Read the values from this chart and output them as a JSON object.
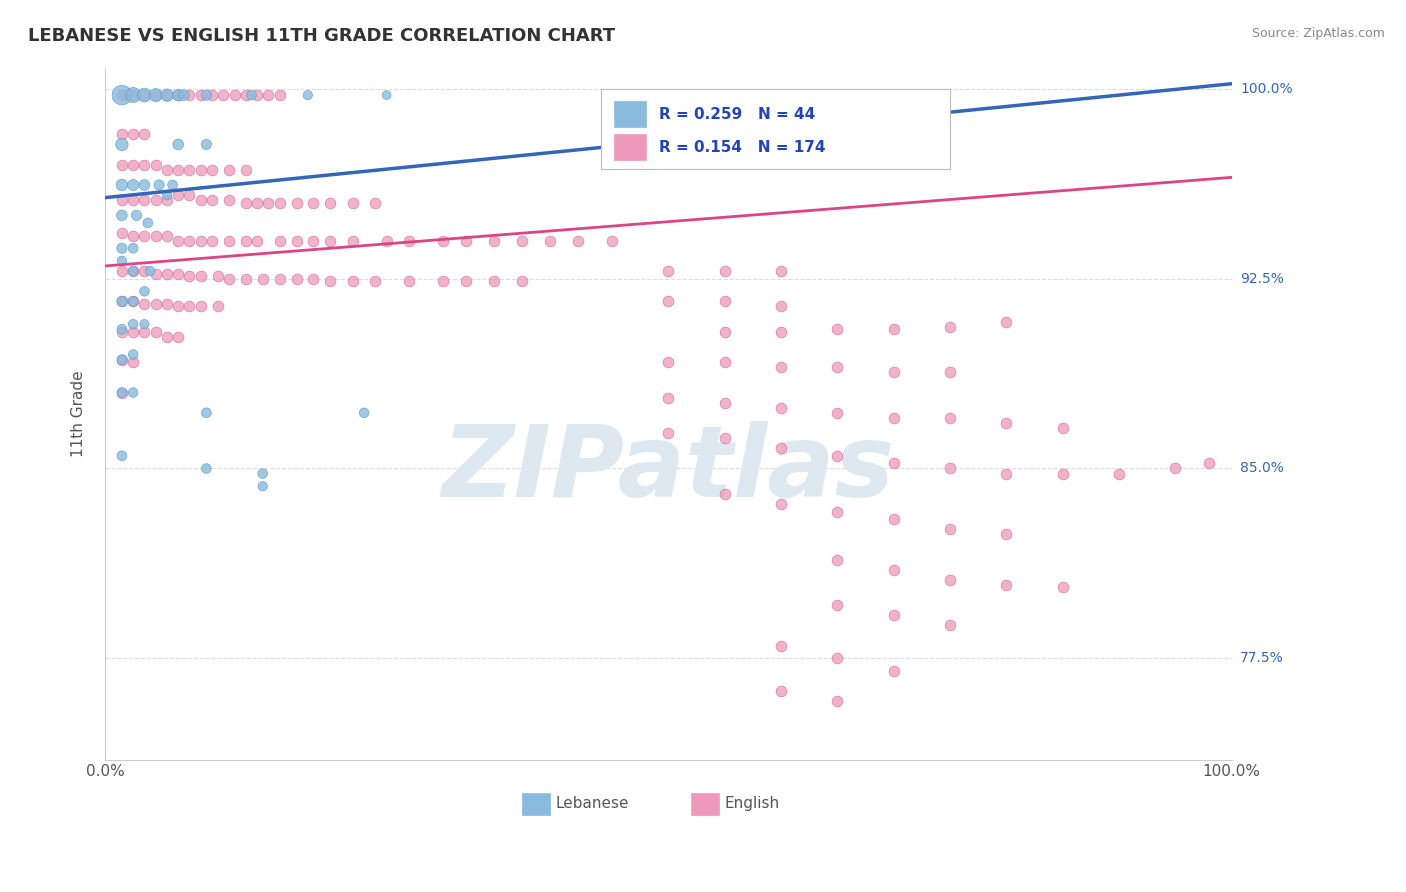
{
  "title": "LEBANESE VS ENGLISH 11TH GRADE CORRELATION CHART",
  "source": "Source: ZipAtlas.com",
  "ylabel": "11th Grade",
  "xlim": [
    0.0,
    1.0
  ],
  "ylim": [
    0.735,
    1.008
  ],
  "yticks": [
    0.775,
    0.85,
    0.925,
    1.0
  ],
  "ytick_labels": [
    "77.5%",
    "85.0%",
    "92.5%",
    "100.0%"
  ],
  "blue_line": {
    "x0": 0.0,
    "y0": 0.957,
    "x1": 1.0,
    "y1": 1.002
  },
  "pink_line": {
    "x0": 0.0,
    "y0": 0.93,
    "x1": 1.0,
    "y1": 0.965
  },
  "blue_scatter": [
    [
      0.015,
      0.9975
    ],
    [
      0.025,
      0.9975
    ],
    [
      0.035,
      0.9975
    ],
    [
      0.045,
      0.9975
    ],
    [
      0.055,
      0.9975
    ],
    [
      0.065,
      0.9975
    ],
    [
      0.07,
      0.9975
    ],
    [
      0.09,
      0.9975
    ],
    [
      0.13,
      0.9975
    ],
    [
      0.18,
      0.9975
    ],
    [
      0.25,
      0.9975
    ],
    [
      0.015,
      0.978
    ],
    [
      0.065,
      0.978
    ],
    [
      0.09,
      0.978
    ],
    [
      0.015,
      0.962
    ],
    [
      0.025,
      0.962
    ],
    [
      0.035,
      0.962
    ],
    [
      0.048,
      0.962
    ],
    [
      0.06,
      0.962
    ],
    [
      0.055,
      0.958
    ],
    [
      0.015,
      0.95
    ],
    [
      0.028,
      0.95
    ],
    [
      0.038,
      0.947
    ],
    [
      0.015,
      0.937
    ],
    [
      0.025,
      0.937
    ],
    [
      0.015,
      0.932
    ],
    [
      0.025,
      0.928
    ],
    [
      0.04,
      0.928
    ],
    [
      0.015,
      0.916
    ],
    [
      0.025,
      0.916
    ],
    [
      0.035,
      0.92
    ],
    [
      0.015,
      0.905
    ],
    [
      0.025,
      0.907
    ],
    [
      0.035,
      0.907
    ],
    [
      0.015,
      0.893
    ],
    [
      0.025,
      0.895
    ],
    [
      0.015,
      0.88
    ],
    [
      0.025,
      0.88
    ],
    [
      0.09,
      0.872
    ],
    [
      0.23,
      0.872
    ],
    [
      0.015,
      0.855
    ],
    [
      0.09,
      0.85
    ],
    [
      0.14,
      0.848
    ],
    [
      0.14,
      0.843
    ]
  ],
  "blue_sizes": [
    200,
    120,
    100,
    90,
    80,
    70,
    60,
    55,
    50,
    45,
    40,
    80,
    60,
    55,
    70,
    65,
    60,
    55,
    50,
    48,
    60,
    55,
    50,
    55,
    50,
    48,
    50,
    48,
    55,
    50,
    48,
    50,
    48,
    45,
    50,
    48,
    50,
    48,
    50,
    48,
    50,
    48,
    48,
    45
  ],
  "pink_scatter": [
    [
      0.015,
      0.9975
    ],
    [
      0.025,
      0.9975
    ],
    [
      0.035,
      0.9975
    ],
    [
      0.045,
      0.9975
    ],
    [
      0.055,
      0.9975
    ],
    [
      0.065,
      0.9975
    ],
    [
      0.075,
      0.9975
    ],
    [
      0.085,
      0.9975
    ],
    [
      0.095,
      0.9975
    ],
    [
      0.105,
      0.9975
    ],
    [
      0.115,
      0.9975
    ],
    [
      0.125,
      0.9975
    ],
    [
      0.135,
      0.9975
    ],
    [
      0.145,
      0.9975
    ],
    [
      0.155,
      0.9975
    ],
    [
      0.015,
      0.982
    ],
    [
      0.025,
      0.982
    ],
    [
      0.035,
      0.982
    ],
    [
      0.015,
      0.97
    ],
    [
      0.025,
      0.97
    ],
    [
      0.035,
      0.97
    ],
    [
      0.045,
      0.97
    ],
    [
      0.055,
      0.968
    ],
    [
      0.065,
      0.968
    ],
    [
      0.075,
      0.968
    ],
    [
      0.085,
      0.968
    ],
    [
      0.095,
      0.968
    ],
    [
      0.11,
      0.968
    ],
    [
      0.125,
      0.968
    ],
    [
      0.015,
      0.956
    ],
    [
      0.025,
      0.956
    ],
    [
      0.035,
      0.956
    ],
    [
      0.045,
      0.956
    ],
    [
      0.055,
      0.956
    ],
    [
      0.065,
      0.958
    ],
    [
      0.075,
      0.958
    ],
    [
      0.085,
      0.956
    ],
    [
      0.095,
      0.956
    ],
    [
      0.11,
      0.956
    ],
    [
      0.125,
      0.955
    ],
    [
      0.135,
      0.955
    ],
    [
      0.145,
      0.955
    ],
    [
      0.155,
      0.955
    ],
    [
      0.17,
      0.955
    ],
    [
      0.185,
      0.955
    ],
    [
      0.2,
      0.955
    ],
    [
      0.22,
      0.955
    ],
    [
      0.24,
      0.955
    ],
    [
      0.015,
      0.943
    ],
    [
      0.025,
      0.942
    ],
    [
      0.035,
      0.942
    ],
    [
      0.045,
      0.942
    ],
    [
      0.055,
      0.942
    ],
    [
      0.065,
      0.94
    ],
    [
      0.075,
      0.94
    ],
    [
      0.085,
      0.94
    ],
    [
      0.095,
      0.94
    ],
    [
      0.11,
      0.94
    ],
    [
      0.125,
      0.94
    ],
    [
      0.135,
      0.94
    ],
    [
      0.155,
      0.94
    ],
    [
      0.17,
      0.94
    ],
    [
      0.185,
      0.94
    ],
    [
      0.2,
      0.94
    ],
    [
      0.22,
      0.94
    ],
    [
      0.25,
      0.94
    ],
    [
      0.27,
      0.94
    ],
    [
      0.3,
      0.94
    ],
    [
      0.32,
      0.94
    ],
    [
      0.345,
      0.94
    ],
    [
      0.37,
      0.94
    ],
    [
      0.395,
      0.94
    ],
    [
      0.42,
      0.94
    ],
    [
      0.45,
      0.94
    ],
    [
      0.015,
      0.928
    ],
    [
      0.025,
      0.928
    ],
    [
      0.035,
      0.928
    ],
    [
      0.045,
      0.927
    ],
    [
      0.055,
      0.927
    ],
    [
      0.065,
      0.927
    ],
    [
      0.075,
      0.926
    ],
    [
      0.085,
      0.926
    ],
    [
      0.1,
      0.926
    ],
    [
      0.11,
      0.925
    ],
    [
      0.125,
      0.925
    ],
    [
      0.14,
      0.925
    ],
    [
      0.155,
      0.925
    ],
    [
      0.17,
      0.925
    ],
    [
      0.185,
      0.925
    ],
    [
      0.2,
      0.924
    ],
    [
      0.22,
      0.924
    ],
    [
      0.24,
      0.924
    ],
    [
      0.27,
      0.924
    ],
    [
      0.3,
      0.924
    ],
    [
      0.32,
      0.924
    ],
    [
      0.345,
      0.924
    ],
    [
      0.37,
      0.924
    ],
    [
      0.015,
      0.916
    ],
    [
      0.025,
      0.916
    ],
    [
      0.035,
      0.915
    ],
    [
      0.045,
      0.915
    ],
    [
      0.055,
      0.915
    ],
    [
      0.065,
      0.914
    ],
    [
      0.075,
      0.914
    ],
    [
      0.085,
      0.914
    ],
    [
      0.1,
      0.914
    ],
    [
      0.015,
      0.904
    ],
    [
      0.025,
      0.904
    ],
    [
      0.035,
      0.904
    ],
    [
      0.045,
      0.904
    ],
    [
      0.055,
      0.902
    ],
    [
      0.065,
      0.902
    ],
    [
      0.015,
      0.893
    ],
    [
      0.025,
      0.892
    ],
    [
      0.015,
      0.88
    ],
    [
      0.5,
      0.928
    ],
    [
      0.55,
      0.928
    ],
    [
      0.6,
      0.928
    ],
    [
      0.5,
      0.916
    ],
    [
      0.55,
      0.916
    ],
    [
      0.6,
      0.914
    ],
    [
      0.55,
      0.904
    ],
    [
      0.6,
      0.904
    ],
    [
      0.65,
      0.905
    ],
    [
      0.7,
      0.905
    ],
    [
      0.75,
      0.906
    ],
    [
      0.8,
      0.908
    ],
    [
      0.5,
      0.892
    ],
    [
      0.55,
      0.892
    ],
    [
      0.6,
      0.89
    ],
    [
      0.65,
      0.89
    ],
    [
      0.7,
      0.888
    ],
    [
      0.75,
      0.888
    ],
    [
      0.5,
      0.878
    ],
    [
      0.55,
      0.876
    ],
    [
      0.6,
      0.874
    ],
    [
      0.65,
      0.872
    ],
    [
      0.7,
      0.87
    ],
    [
      0.75,
      0.87
    ],
    [
      0.8,
      0.868
    ],
    [
      0.85,
      0.866
    ],
    [
      0.5,
      0.864
    ],
    [
      0.55,
      0.862
    ],
    [
      0.6,
      0.858
    ],
    [
      0.65,
      0.855
    ],
    [
      0.7,
      0.852
    ],
    [
      0.75,
      0.85
    ],
    [
      0.8,
      0.848
    ],
    [
      0.85,
      0.848
    ],
    [
      0.9,
      0.848
    ],
    [
      0.95,
      0.85
    ],
    [
      0.98,
      0.852
    ],
    [
      0.55,
      0.84
    ],
    [
      0.6,
      0.836
    ],
    [
      0.65,
      0.833
    ],
    [
      0.7,
      0.83
    ],
    [
      0.75,
      0.826
    ],
    [
      0.8,
      0.824
    ],
    [
      0.65,
      0.814
    ],
    [
      0.7,
      0.81
    ],
    [
      0.75,
      0.806
    ],
    [
      0.8,
      0.804
    ],
    [
      0.85,
      0.803
    ],
    [
      0.65,
      0.796
    ],
    [
      0.7,
      0.792
    ],
    [
      0.75,
      0.788
    ],
    [
      0.6,
      0.78
    ],
    [
      0.65,
      0.775
    ],
    [
      0.7,
      0.77
    ],
    [
      0.6,
      0.762
    ],
    [
      0.65,
      0.758
    ]
  ],
  "title_color": "#333333",
  "source_color": "#888888",
  "axis_color": "#555555",
  "grid_color": "#dddddd",
  "blue_line_color": "#3366bb",
  "pink_line_color": "#dd4488",
  "blue_dot_color": "#88bbdd",
  "blue_dot_edge": "#5599cc",
  "pink_dot_color": "#ee99bb",
  "pink_dot_edge": "#cc6688",
  "legend_text_color": "#2244bb",
  "right_axis_color": "#3366bb",
  "background_color": "#ffffff",
  "watermark_color": "#dde8f0"
}
